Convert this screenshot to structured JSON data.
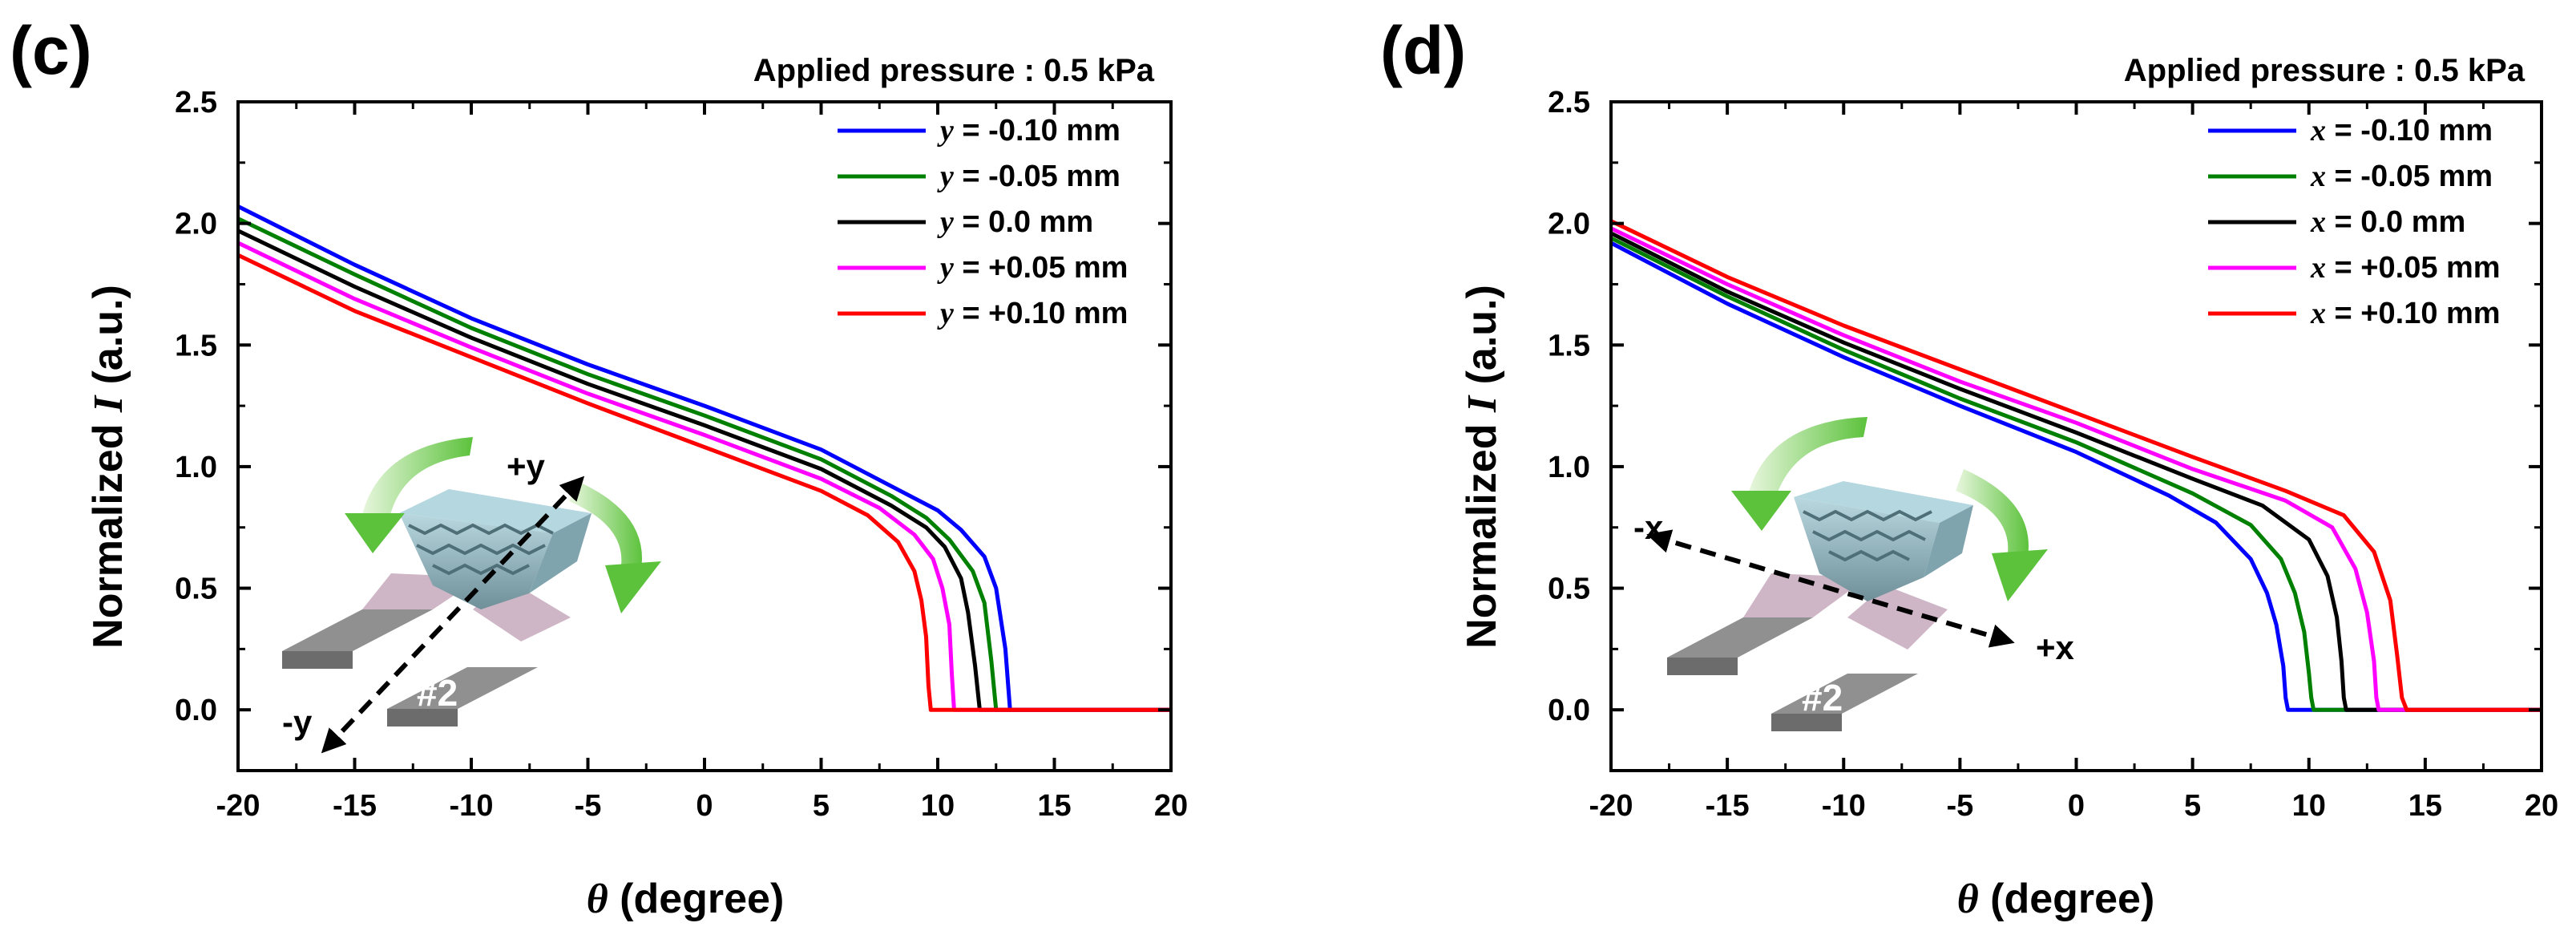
{
  "chart_data": [
    {
      "type": "line",
      "panel": "(c)",
      "annotation": "Applied pressure : 0.5 kPa",
      "xlabel_symbol": "θ",
      "xlabel_text": " (degree)",
      "ylabel_text": "Normalized ",
      "ylabel_symbol": "I",
      "ylabel_unit": " (a.u.)",
      "xlim": [
        -20,
        20
      ],
      "ylim": [
        -0.25,
        2.5
      ],
      "xticks": [
        -20,
        -15,
        -10,
        -5,
        0,
        5,
        10,
        15,
        20
      ],
      "yticks": [
        0.0,
        0.5,
        1.0,
        1.5,
        2.0,
        2.5
      ],
      "xtick_labels": [
        "-20",
        "-15",
        "-10",
        "-5",
        "0",
        "5",
        "10",
        "15",
        "20"
      ],
      "ytick_labels": [
        "0.0",
        "0.5",
        "1.0",
        "1.5",
        "2.0",
        "2.5"
      ],
      "legend_position": "top-right",
      "inset": {
        "axis_plus": "+y",
        "axis_minus": "-y",
        "electrode": "#2"
      },
      "series": [
        {
          "name": "y = -0.10 mm",
          "var": "y",
          "rest": " = -0.10 mm",
          "color": "#0000ff",
          "x": [
            -20,
            -15,
            -10,
            -5,
            0,
            5,
            8,
            10,
            11,
            12,
            12.5,
            12.9,
            13.1,
            15,
            20
          ],
          "y": [
            2.07,
            1.83,
            1.61,
            1.42,
            1.25,
            1.07,
            0.92,
            0.82,
            0.74,
            0.63,
            0.5,
            0.25,
            0.0,
            0.0,
            0.0
          ]
        },
        {
          "name": "y = -0.05 mm",
          "var": "y",
          "rest": " = -0.05 mm",
          "color": "#008000",
          "x": [
            -20,
            -15,
            -10,
            -5,
            0,
            5,
            8,
            9.5,
            10.5,
            11.5,
            12,
            12.3,
            12.5,
            15,
            20
          ],
          "y": [
            2.02,
            1.79,
            1.57,
            1.38,
            1.21,
            1.03,
            0.88,
            0.79,
            0.7,
            0.57,
            0.44,
            0.2,
            0.0,
            0.0,
            0.0
          ]
        },
        {
          "name": "y = 0.0 mm",
          "var": "y",
          "rest": " = 0.0 mm",
          "color": "#000000",
          "x": [
            -20,
            -15,
            -10,
            -5,
            0,
            5,
            8,
            9.5,
            10.3,
            11,
            11.3,
            11.6,
            11.8,
            15,
            20
          ],
          "y": [
            1.97,
            1.74,
            1.53,
            1.34,
            1.17,
            0.99,
            0.84,
            0.75,
            0.67,
            0.54,
            0.4,
            0.18,
            0.0,
            0.0,
            0.0
          ]
        },
        {
          "name": "y = +0.05 mm",
          "var": "y",
          "rest": " = +0.05 mm",
          "color": "#ff00ff",
          "x": [
            -20,
            -15,
            -10,
            -5,
            0,
            5,
            7.5,
            9,
            9.8,
            10.2,
            10.5,
            10.6,
            10.7,
            15,
            20
          ],
          "y": [
            1.92,
            1.69,
            1.49,
            1.3,
            1.13,
            0.95,
            0.83,
            0.72,
            0.62,
            0.5,
            0.35,
            0.15,
            0.0,
            0.0,
            0.0
          ]
        },
        {
          "name": "y = +0.10 mm",
          "var": "y",
          "rest": " = +0.10 mm",
          "color": "#ff0000",
          "x": [
            -20,
            -15,
            -10,
            -5,
            0,
            5,
            7,
            8.3,
            9,
            9.3,
            9.5,
            9.6,
            9.7,
            15,
            20
          ],
          "y": [
            1.87,
            1.64,
            1.45,
            1.26,
            1.08,
            0.9,
            0.8,
            0.69,
            0.57,
            0.45,
            0.3,
            0.1,
            0.0,
            0.0,
            0.0
          ]
        }
      ]
    },
    {
      "type": "line",
      "panel": "(d)",
      "annotation": "Applied pressure : 0.5 kPa",
      "xlabel_symbol": "θ",
      "xlabel_text": " (degree)",
      "ylabel_text": "Normalized ",
      "ylabel_symbol": "I",
      "ylabel_unit": " (a.u.)",
      "xlim": [
        -20,
        20
      ],
      "ylim": [
        -0.25,
        2.5
      ],
      "xticks": [
        -20,
        -15,
        -10,
        -5,
        0,
        5,
        10,
        15,
        20
      ],
      "yticks": [
        0.0,
        0.5,
        1.0,
        1.5,
        2.0,
        2.5
      ],
      "xtick_labels": [
        "-20",
        "-15",
        "-10",
        "-5",
        "0",
        "5",
        "10",
        "15",
        "20"
      ],
      "ytick_labels": [
        "0.0",
        "0.5",
        "1.0",
        "1.5",
        "2.0",
        "2.5"
      ],
      "legend_position": "top-right",
      "inset": {
        "axis_plus": "+x",
        "axis_minus": "-x",
        "electrode": "#2"
      },
      "series": [
        {
          "name": "x = -0.10 mm",
          "var": "x",
          "rest": " = -0.10 mm",
          "color": "#0000ff",
          "x": [
            -20,
            -15,
            -10,
            -5,
            0,
            4,
            6,
            7.5,
            8.2,
            8.6,
            8.9,
            9.0,
            9.1,
            15,
            20
          ],
          "y": [
            1.92,
            1.67,
            1.45,
            1.25,
            1.06,
            0.88,
            0.77,
            0.62,
            0.48,
            0.35,
            0.18,
            0.05,
            0.0,
            0.0,
            0.0
          ]
        },
        {
          "name": "x = -0.05 mm",
          "var": "x",
          "rest": " = -0.05 mm",
          "color": "#008000",
          "x": [
            -20,
            -15,
            -10,
            -5,
            0,
            5,
            7.5,
            8.8,
            9.4,
            9.8,
            10.0,
            10.1,
            10.2,
            15,
            20
          ],
          "y": [
            1.94,
            1.7,
            1.48,
            1.28,
            1.1,
            0.89,
            0.76,
            0.62,
            0.48,
            0.32,
            0.15,
            0.05,
            0.0,
            0.0,
            0.0
          ]
        },
        {
          "name": "x = 0.0 mm",
          "var": "x",
          "rest": " = 0.0 mm",
          "color": "#000000",
          "x": [
            -20,
            -15,
            -10,
            -5,
            0,
            5,
            8,
            10,
            10.8,
            11.2,
            11.4,
            11.5,
            11.6,
            15,
            20
          ],
          "y": [
            1.96,
            1.72,
            1.51,
            1.32,
            1.14,
            0.95,
            0.84,
            0.7,
            0.55,
            0.38,
            0.2,
            0.05,
            0.0,
            0.0,
            0.0
          ]
        },
        {
          "name": "x = +0.05 mm",
          "var": "x",
          "rest": " = +0.05 mm",
          "color": "#ff00ff",
          "x": [
            -20,
            -15,
            -10,
            -5,
            0,
            5,
            9,
            11,
            12,
            12.5,
            12.8,
            12.9,
            13.0,
            15,
            20
          ],
          "y": [
            1.98,
            1.75,
            1.54,
            1.35,
            1.18,
            0.99,
            0.86,
            0.75,
            0.58,
            0.4,
            0.2,
            0.05,
            0.0,
            0.0,
            0.0
          ]
        },
        {
          "name": "x = +0.10 mm",
          "var": "x",
          "rest": " = +0.10 mm",
          "color": "#ff0000",
          "x": [
            -20,
            -15,
            -10,
            -5,
            0,
            5,
            9,
            11.5,
            12.8,
            13.5,
            13.8,
            14.0,
            14.2,
            15,
            20
          ],
          "y": [
            2.01,
            1.78,
            1.58,
            1.4,
            1.22,
            1.04,
            0.9,
            0.8,
            0.65,
            0.45,
            0.22,
            0.05,
            0.0,
            0.0,
            0.0
          ]
        }
      ]
    }
  ]
}
